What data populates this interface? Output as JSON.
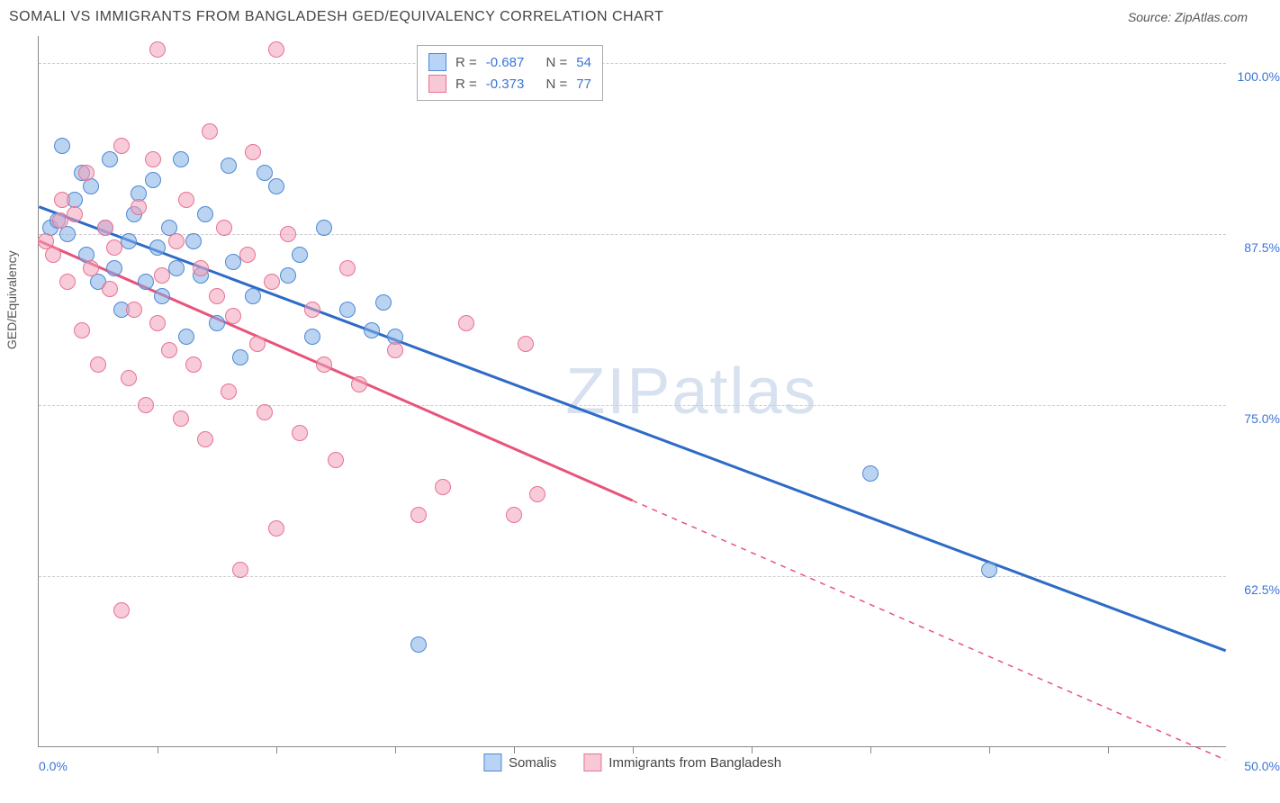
{
  "title": "SOMALI VS IMMIGRANTS FROM BANGLADESH GED/EQUIVALENCY CORRELATION CHART",
  "source": "Source: ZipAtlas.com",
  "watermark_bold": "ZIP",
  "watermark_light": "atlas",
  "chart": {
    "type": "scatter",
    "y_axis_title": "GED/Equivalency",
    "xlim": [
      0,
      50
    ],
    "ylim": [
      50,
      102
    ],
    "x_tick_labels": {
      "min": "0.0%",
      "max": "50.0%"
    },
    "y_ticks": [
      {
        "value": 62.5,
        "label": "62.5%"
      },
      {
        "value": 75.0,
        "label": "75.0%"
      },
      {
        "value": 87.5,
        "label": "87.5%"
      },
      {
        "value": 100.0,
        "label": "100.0%"
      }
    ],
    "x_tick_positions": [
      5,
      10,
      15,
      20,
      25,
      30,
      35,
      40,
      45
    ],
    "legend_top": [
      {
        "swatch_fill": "#b8d3f5",
        "swatch_stroke": "#4d88d6",
        "r_label": "R =",
        "r_value": "-0.687",
        "n_label": "N =",
        "n_value": "54"
      },
      {
        "swatch_fill": "#f7c9d6",
        "swatch_stroke": "#e9728f",
        "r_label": "R =",
        "r_value": "-0.373",
        "n_label": "N =",
        "n_value": "77"
      }
    ],
    "legend_bottom": [
      {
        "swatch_fill": "#b8d3f5",
        "swatch_stroke": "#4d88d6",
        "label": "Somalis"
      },
      {
        "swatch_fill": "#f7c9d6",
        "swatch_stroke": "#e9728f",
        "label": "Immigrants from Bangladesh"
      }
    ],
    "series": [
      {
        "name": "Somalis",
        "point_fill": "rgba(130,175,230,0.55)",
        "point_stroke": "#4d88d6",
        "trend_color": "#2e6bc7",
        "trend_solid": {
          "x1": 0,
          "y1": 89.5,
          "x2": 50,
          "y2": 57
        },
        "points": [
          [
            0.5,
            88
          ],
          [
            0.8,
            88.5
          ],
          [
            1,
            94
          ],
          [
            1.2,
            87.5
          ],
          [
            1.5,
            90
          ],
          [
            1.8,
            92
          ],
          [
            2,
            86
          ],
          [
            2.2,
            91
          ],
          [
            2.5,
            84
          ],
          [
            2.8,
            88
          ],
          [
            3,
            93
          ],
          [
            3.2,
            85
          ],
          [
            3.5,
            82
          ],
          [
            3.8,
            87
          ],
          [
            4,
            89
          ],
          [
            4.2,
            90.5
          ],
          [
            4.5,
            84
          ],
          [
            4.8,
            91.5
          ],
          [
            5,
            86.5
          ],
          [
            5.2,
            83
          ],
          [
            5.5,
            88
          ],
          [
            5.8,
            85
          ],
          [
            6,
            93
          ],
          [
            6.2,
            80
          ],
          [
            6.5,
            87
          ],
          [
            6.8,
            84.5
          ],
          [
            7,
            89
          ],
          [
            7.5,
            81
          ],
          [
            8,
            92.5
          ],
          [
            8.2,
            85.5
          ],
          [
            8.5,
            78.5
          ],
          [
            9,
            83
          ],
          [
            9.5,
            92
          ],
          [
            10,
            91
          ],
          [
            10.5,
            84.5
          ],
          [
            11,
            86
          ],
          [
            11.5,
            80
          ],
          [
            12,
            88
          ],
          [
            13,
            82
          ],
          [
            14,
            80.5
          ],
          [
            14.5,
            82.5
          ],
          [
            15,
            80
          ],
          [
            16,
            57.5
          ],
          [
            35,
            70
          ],
          [
            40,
            63
          ]
        ]
      },
      {
        "name": "Immigrants from Bangladesh",
        "point_fill": "rgba(240,160,185,0.55)",
        "point_stroke": "#e9728f",
        "trend_color": "#e9537a",
        "trend_solid": {
          "x1": 0,
          "y1": 87,
          "x2": 25,
          "y2": 68
        },
        "trend_dashed": {
          "x1": 25,
          "y1": 68,
          "x2": 50,
          "y2": 49
        },
        "points": [
          [
            0.3,
            87
          ],
          [
            0.6,
            86
          ],
          [
            0.9,
            88.5
          ],
          [
            1,
            90
          ],
          [
            1.2,
            84
          ],
          [
            1.5,
            89
          ],
          [
            1.8,
            80.5
          ],
          [
            2,
            92
          ],
          [
            2.2,
            85
          ],
          [
            2.5,
            78
          ],
          [
            2.8,
            88
          ],
          [
            3,
            83.5
          ],
          [
            3.2,
            86.5
          ],
          [
            3.5,
            94
          ],
          [
            3.5,
            60
          ],
          [
            3.8,
            77
          ],
          [
            4,
            82
          ],
          [
            4.2,
            89.5
          ],
          [
            4.5,
            75
          ],
          [
            4.8,
            93
          ],
          [
            5,
            101
          ],
          [
            5,
            81
          ],
          [
            5.2,
            84.5
          ],
          [
            5.5,
            79
          ],
          [
            5.8,
            87
          ],
          [
            6,
            74
          ],
          [
            6.2,
            90
          ],
          [
            6.5,
            78
          ],
          [
            6.8,
            85
          ],
          [
            7,
            72.5
          ],
          [
            7.2,
            95
          ],
          [
            7.5,
            83
          ],
          [
            7.8,
            88
          ],
          [
            8,
            76
          ],
          [
            8.2,
            81.5
          ],
          [
            8.5,
            63
          ],
          [
            8.8,
            86
          ],
          [
            9,
            93.5
          ],
          [
            9.2,
            79.5
          ],
          [
            9.5,
            74.5
          ],
          [
            9.8,
            84
          ],
          [
            10,
            101
          ],
          [
            10,
            66
          ],
          [
            10.5,
            87.5
          ],
          [
            11,
            73
          ],
          [
            11.5,
            82
          ],
          [
            12,
            78
          ],
          [
            12.5,
            71
          ],
          [
            13,
            85
          ],
          [
            13.5,
            76.5
          ],
          [
            15,
            79
          ],
          [
            16,
            67
          ],
          [
            17,
            69
          ],
          [
            18,
            81
          ],
          [
            20,
            67
          ],
          [
            20.5,
            79.5
          ],
          [
            21,
            68.5
          ]
        ]
      }
    ]
  }
}
